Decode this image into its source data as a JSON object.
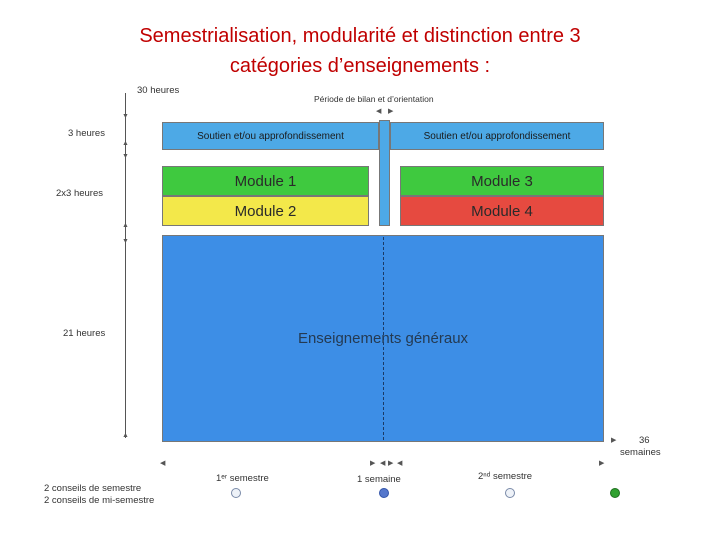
{
  "title": {
    "line1": "Semestrialisation, modularité et  distinction entre 3",
    "line2": "catégories d’enseignements :"
  },
  "labels": {
    "top_hours": "30 heures",
    "period": "Période de bilan et d’orientation",
    "h3": "3 heures",
    "h2x3": "2x3 heures",
    "h21": "21 heures",
    "weeks_num": "36",
    "weeks_word": "semaines",
    "sem1": "1ᵉʳ semestre",
    "week1": "1 semaine",
    "sem2": "2ⁿᵈ semestre",
    "conseils1": "2 conseils de semestre",
    "conseils2": "2 conseils de mi-semestre"
  },
  "blocks": {
    "soutien_left": "Soutien et/ou approfondissement",
    "soutien_right": "Soutien et/ou approfondissement",
    "module1": "Module 1",
    "module2": "Module 2",
    "module3": "Module 3",
    "module4": "Module 4",
    "general": "Enseignements généraux"
  },
  "colors": {
    "soutien": "#4da9e6",
    "module_green": "#3fc93f",
    "module_yellow": "#f3e84a",
    "module_red": "#e64a40",
    "general": "#3d8ee6",
    "title": "#c00000"
  }
}
